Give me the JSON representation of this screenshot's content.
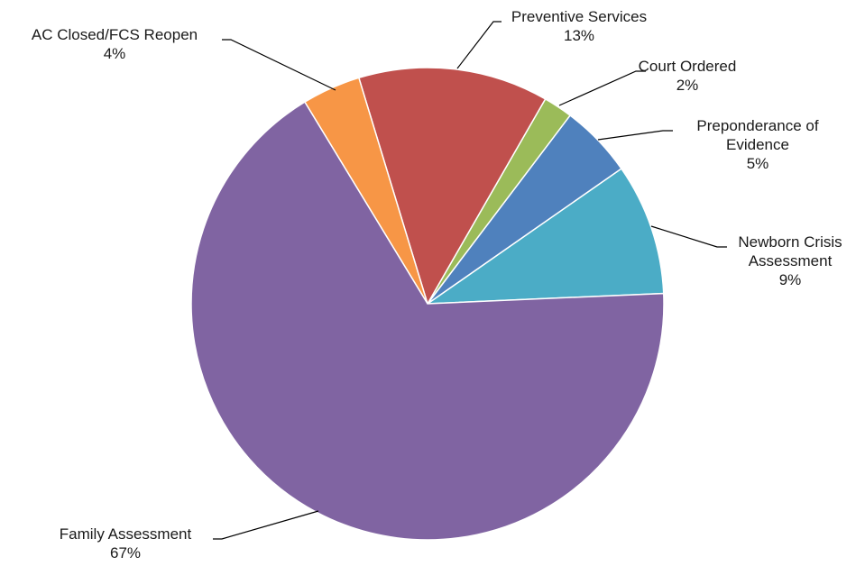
{
  "chart_data": {
    "type": "pie",
    "title": "",
    "start_slice": "Newborn Crisis Assessment",
    "direction": "counterclockwise",
    "slices": [
      {
        "name": [
          "Newborn Crisis",
          "Assessment"
        ],
        "value": 9,
        "label": "9%",
        "color": "#4BACC6"
      },
      {
        "name": [
          "Preponderance of",
          "Evidence"
        ],
        "value": 5,
        "label": "5%",
        "color": "#4F81BD"
      },
      {
        "name": [
          "Court Ordered"
        ],
        "value": 2,
        "label": "2%",
        "color": "#9BBB59"
      },
      {
        "name": [
          "Preventive Services"
        ],
        "value": 13,
        "label": "13%",
        "color": "#C0504D"
      },
      {
        "name": [
          "AC Closed/FCS Reopen"
        ],
        "value": 4,
        "label": "4%",
        "color": "#F79646"
      },
      {
        "name": [
          "Family Assessment"
        ],
        "value": 67,
        "label": "67%",
        "color": "#8064A2"
      }
    ]
  }
}
